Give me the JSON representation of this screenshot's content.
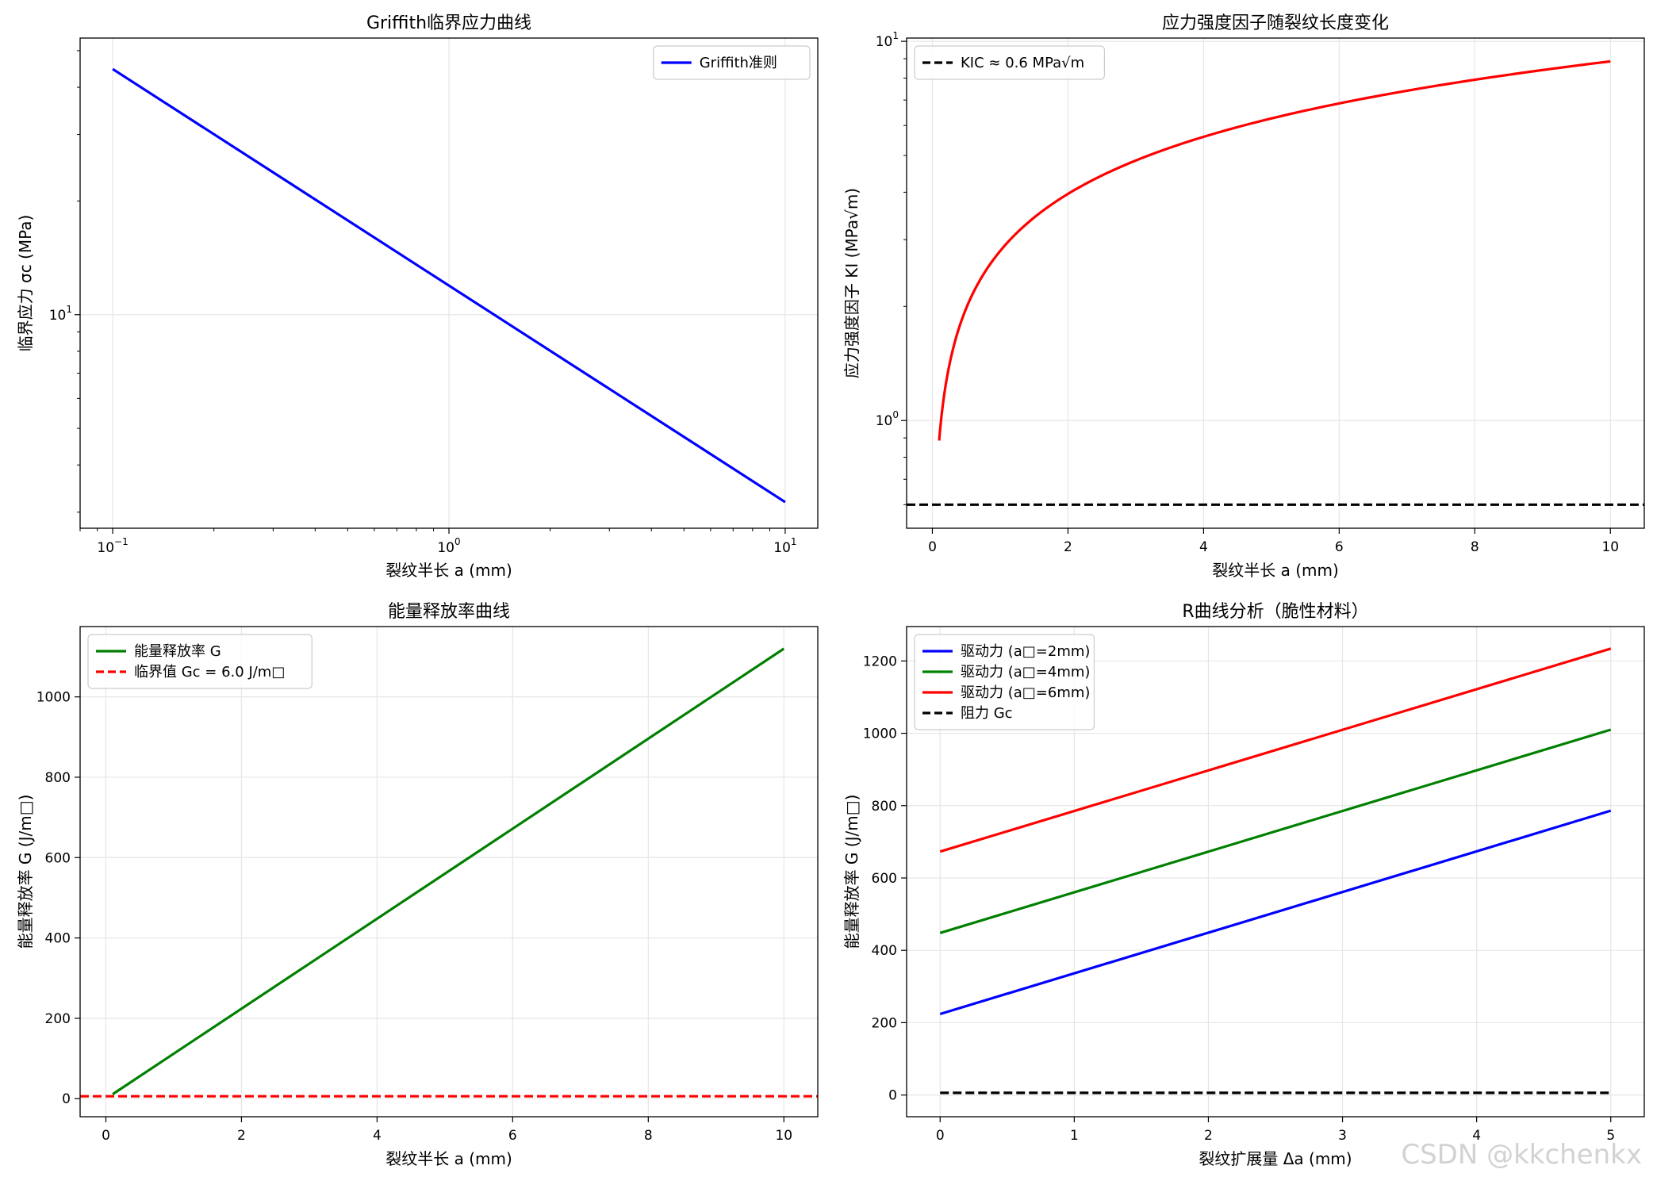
{
  "watermark": "CSDN @kkchenkx",
  "chart_data": [
    {
      "type": "line",
      "title": "Griffith临界应力曲线",
      "xlabel": "裂纹半长 a (mm)",
      "ylabel": "临界应力 σc (MPa)",
      "xscale": "log",
      "yscale": "log",
      "xlim": [
        0.08,
        12.5
      ],
      "ylim": [
        2.72,
        54
      ],
      "xticks": [
        {
          "v": 0.1,
          "base": "10",
          "exp": "−1"
        },
        {
          "v": 1,
          "base": "10",
          "exp": "0"
        },
        {
          "v": 10,
          "base": "10",
          "exp": "1"
        }
      ],
      "yticks": [
        {
          "v": 10,
          "base": "10",
          "exp": "1"
        }
      ],
      "grid": true,
      "legend": "top-right",
      "series": [
        {
          "name": "Griffith准则",
          "color": "#0000ff",
          "dash": "solid",
          "x": [
            0.1,
            10
          ],
          "y": [
            44.7,
            3.19
          ]
        }
      ]
    },
    {
      "type": "line",
      "title": "应力强度因子随裂纹长度变化",
      "xlabel": "裂纹半长 a (mm)",
      "ylabel": "应力强度因子 KI (MPa√m)",
      "yscale": "log",
      "xlim": [
        -0.38,
        10.5
      ],
      "ylim": [
        0.52,
        10.2
      ],
      "xticks": [
        {
          "v": 0,
          "t": "0"
        },
        {
          "v": 2,
          "t": "2"
        },
        {
          "v": 4,
          "t": "4"
        },
        {
          "v": 6,
          "t": "6"
        },
        {
          "v": 8,
          "t": "8"
        },
        {
          "v": 10,
          "t": "10"
        }
      ],
      "yticks": [
        {
          "v": 1,
          "base": "10",
          "exp": "0"
        },
        {
          "v": 10,
          "base": "10",
          "exp": "1"
        }
      ],
      "grid": true,
      "legend": "top-left",
      "series": [
        {
          "name": "",
          "color": "#ff0000",
          "dash": "solid",
          "func": "sqrt",
          "coef": 2.8,
          "x": [
            0.1,
            10
          ]
        },
        {
          "name": "KIC ≈ 0.6 MPa√m",
          "color": "#000000",
          "dash": "dashed",
          "x": [
            -0.38,
            10.5
          ],
          "y": [
            0.6,
            0.6
          ]
        }
      ]
    },
    {
      "type": "line",
      "title": "能量释放率曲线",
      "xlabel": "裂纹半长 a (mm)",
      "ylabel": "能量释放率 G (J/m□)",
      "xlim": [
        -0.38,
        10.5
      ],
      "ylim": [
        -45,
        1175
      ],
      "xticks": [
        {
          "v": 0,
          "t": "0"
        },
        {
          "v": 2,
          "t": "2"
        },
        {
          "v": 4,
          "t": "4"
        },
        {
          "v": 6,
          "t": "6"
        },
        {
          "v": 8,
          "t": "8"
        },
        {
          "v": 10,
          "t": "10"
        }
      ],
      "yticks": [
        {
          "v": 0,
          "t": "0"
        },
        {
          "v": 200,
          "t": "200"
        },
        {
          "v": 400,
          "t": "400"
        },
        {
          "v": 600,
          "t": "600"
        },
        {
          "v": 800,
          "t": "800"
        },
        {
          "v": 1000,
          "t": "1000"
        }
      ],
      "grid": true,
      "legend": "top-left",
      "series": [
        {
          "name": "能量释放率 G",
          "color": "#008000",
          "dash": "solid",
          "x": [
            0.1,
            10
          ],
          "y": [
            11,
            1120
          ]
        },
        {
          "name": "临界值 Gc = 6.0 J/m□",
          "color": "#ff0000",
          "dash": "dashed",
          "x": [
            -0.38,
            10.5
          ],
          "y": [
            6,
            6
          ]
        }
      ]
    },
    {
      "type": "line",
      "title": "R曲线分析（脆性材料）",
      "xlabel": "裂纹扩展量 Δa (mm)",
      "ylabel": "能量释放率 G (J/m□)",
      "xlim": [
        -0.25,
        5.25
      ],
      "ylim": [
        -60,
        1295
      ],
      "xticks": [
        {
          "v": 0,
          "t": "0"
        },
        {
          "v": 1,
          "t": "1"
        },
        {
          "v": 2,
          "t": "2"
        },
        {
          "v": 3,
          "t": "3"
        },
        {
          "v": 4,
          "t": "4"
        },
        {
          "v": 5,
          "t": "5"
        }
      ],
      "yticks": [
        {
          "v": 0,
          "t": "0"
        },
        {
          "v": 200,
          "t": "200"
        },
        {
          "v": 400,
          "t": "400"
        },
        {
          "v": 600,
          "t": "600"
        },
        {
          "v": 800,
          "t": "800"
        },
        {
          "v": 1000,
          "t": "1000"
        },
        {
          "v": 1200,
          "t": "1200"
        }
      ],
      "grid": true,
      "legend": "top-left",
      "series": [
        {
          "name": "驱动力 (a□=2mm)",
          "color": "#0000ff",
          "dash": "solid",
          "x": [
            0,
            5
          ],
          "y": [
            224,
            786
          ]
        },
        {
          "name": "驱动力 (a□=4mm)",
          "color": "#008000",
          "dash": "solid",
          "x": [
            0,
            5
          ],
          "y": [
            448,
            1010
          ]
        },
        {
          "name": "驱动力 (a□=6mm)",
          "color": "#ff0000",
          "dash": "solid",
          "x": [
            0,
            5
          ],
          "y": [
            673,
            1234
          ]
        },
        {
          "name": "阻力 Gc",
          "color": "#000000",
          "dash": "dashed",
          "x": [
            0,
            5
          ],
          "y": [
            6,
            6
          ]
        }
      ]
    }
  ]
}
